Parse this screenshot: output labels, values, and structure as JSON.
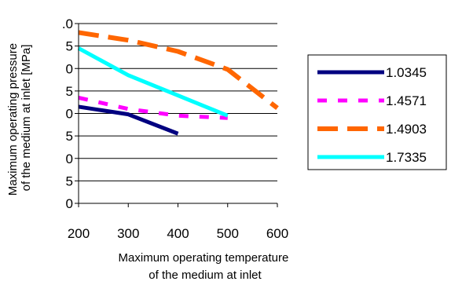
{
  "chart_data": {
    "type": "line",
    "xlabel": [
      "Maximum operating temperature",
      "of the medium at inlet"
    ],
    "ylabel": [
      "Maximum operating pressure",
      "of the medium at inlet [MPa]"
    ],
    "xlim": [
      200,
      600
    ],
    "ylim": [
      0,
      40
    ],
    "x_ticks": [
      "200",
      "300",
      "400",
      "500",
      "600"
    ],
    "y_ticks": [
      "0",
      "5",
      "0",
      "5",
      "0",
      "5",
      "0",
      "5",
      ".0"
    ],
    "grid": "horizontal",
    "legend_position": "right",
    "series": [
      {
        "name": "1.0345",
        "color": "#000080",
        "dash": "solid",
        "x": [
          200,
          300,
          400
        ],
        "y": [
          21.5,
          19.8,
          15.5
        ]
      },
      {
        "name": "1.4571",
        "color": "#ff00ff",
        "dash": "dashed",
        "x": [
          200,
          300,
          400,
          500
        ],
        "y": [
          23.5,
          21.0,
          19.5,
          19.0
        ]
      },
      {
        "name": "1.4903",
        "color": "#ff6600",
        "dash": "dashed",
        "x": [
          200,
          300,
          400,
          500,
          600
        ],
        "y": [
          38.0,
          36.3,
          33.8,
          29.8,
          21.2
        ]
      },
      {
        "name": "1.7335",
        "color": "#00ffff",
        "dash": "solid",
        "x": [
          200,
          300,
          400,
          500
        ],
        "y": [
          34.5,
          28.5,
          24.0,
          19.5
        ]
      }
    ]
  }
}
